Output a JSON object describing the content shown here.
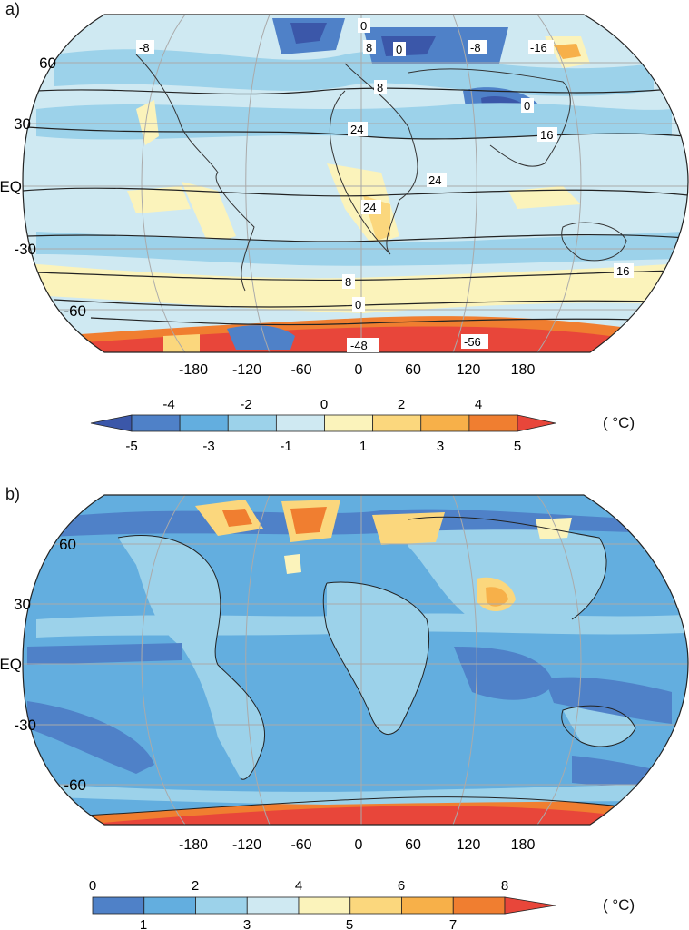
{
  "panels": [
    {
      "label": "a)",
      "lat_labels": [
        "60",
        "30",
        "EQ",
        "-30",
        "-60"
      ],
      "lon_labels": [
        "-180",
        "-120",
        "-60",
        "0",
        "60",
        "120",
        "180"
      ],
      "contour_labels": [
        "-8",
        "0",
        "8",
        "0",
        "-8",
        "-16",
        "8",
        "0",
        "24",
        "16",
        "24",
        "24",
        "16",
        "8",
        "0",
        "-48",
        "-56"
      ],
      "colorbar": {
        "top_ticks": [
          "-4",
          "-2",
          "0",
          "2",
          "4"
        ],
        "bottom_ticks": [
          "-5",
          "-3",
          "-1",
          "1",
          "3",
          "5"
        ],
        "colors": [
          "#3b57a9",
          "#4f81c8",
          "#63aedf",
          "#9cd2ea",
          "#cfe9f2",
          "#fbf3bb",
          "#fbd77d",
          "#f7b049",
          "#f07e30",
          "#e8463a"
        ],
        "unit": "( °C)"
      }
    },
    {
      "label": "b)",
      "lat_labels": [
        "60",
        "30",
        "EQ",
        "-30",
        "-60"
      ],
      "lon_labels": [
        "-180",
        "-120",
        "-60",
        "0",
        "60",
        "120",
        "180"
      ],
      "colorbar": {
        "top_ticks": [
          "0",
          "2",
          "4",
          "6",
          "8"
        ],
        "bottom_ticks": [
          "1",
          "3",
          "5",
          "7"
        ],
        "colors": [
          "#4f81c8",
          "#63aedf",
          "#9cd2ea",
          "#cfe9f2",
          "#fbf3bb",
          "#fbd77d",
          "#f7b049",
          "#f07e30",
          "#e8463a"
        ],
        "unit": "( °C)"
      }
    }
  ]
}
